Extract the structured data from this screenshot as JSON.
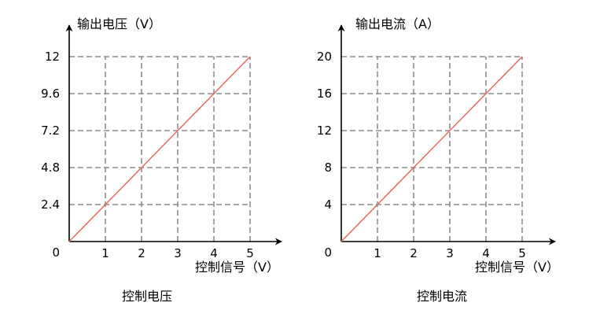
{
  "chart_data": [
    {
      "type": "line",
      "title": "",
      "caption": "控制电压",
      "xlabel": "控制信号（V）",
      "ylabel": "输出电压（V）",
      "x": [
        0,
        1,
        2,
        3,
        4,
        5
      ],
      "x_tick_labels": [
        "1",
        "2",
        "3",
        "4",
        "5"
      ],
      "y_tick_labels": [
        "2.4",
        "4.8",
        "7.2",
        "9.6",
        "12"
      ],
      "origin_label": "0",
      "xlim": [
        0,
        5
      ],
      "ylim": [
        0,
        12
      ],
      "grid": true,
      "line_color": "#e8695f",
      "series": [
        {
          "values": [
            0,
            2.4,
            4.8,
            7.2,
            9.6,
            12
          ]
        }
      ]
    },
    {
      "type": "line",
      "title": "",
      "caption": "控制电流",
      "xlabel": "控制信号（V）",
      "ylabel": "输出电流（A）",
      "x": [
        0,
        1,
        2,
        3,
        4,
        5
      ],
      "x_tick_labels": [
        "1",
        "2",
        "3",
        "4",
        "5"
      ],
      "y_tick_labels": [
        "4",
        "8",
        "12",
        "16",
        "20"
      ],
      "origin_label": "0",
      "xlim": [
        0,
        5
      ],
      "ylim": [
        0,
        20
      ],
      "grid": true,
      "line_color": "#e8695f",
      "series": [
        {
          "values": [
            0,
            4,
            8,
            12,
            16,
            20
          ]
        }
      ]
    }
  ]
}
